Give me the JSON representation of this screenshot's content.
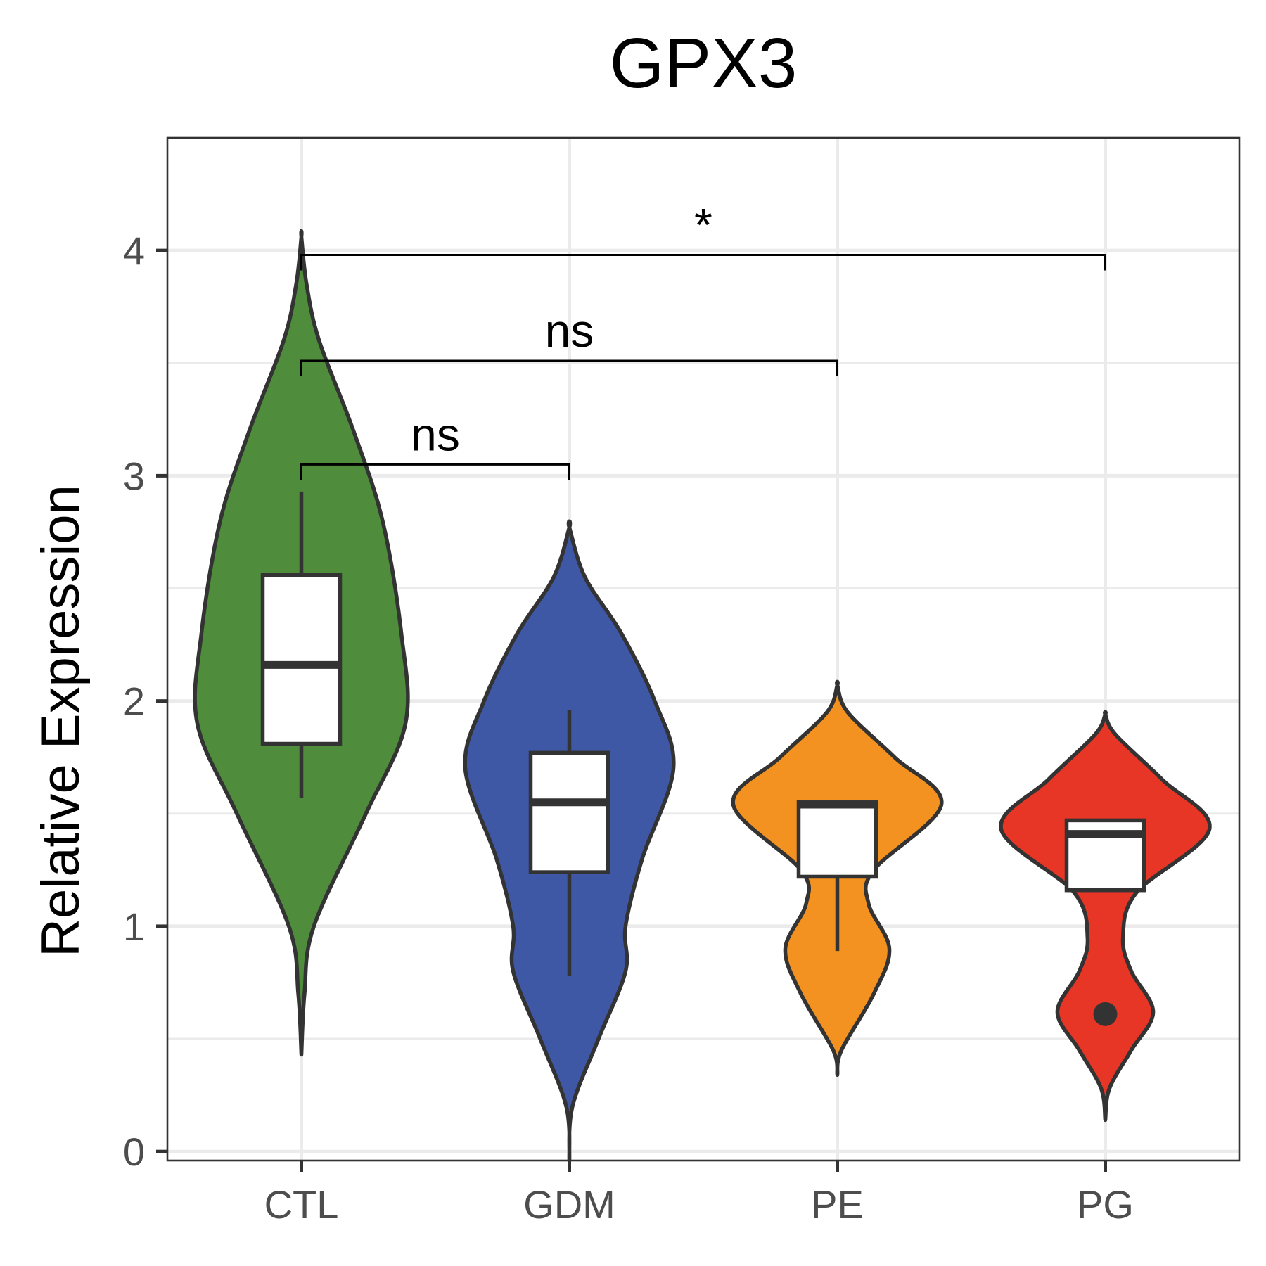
{
  "chart_data": {
    "type": "violin",
    "title": "GPX3",
    "xlabel": "",
    "ylabel": "Relative Expression",
    "ylim": [
      -0.04,
      4.5
    ],
    "yticks": [
      "0",
      "1",
      "2",
      "3",
      "4"
    ],
    "grid": true,
    "legend": "none",
    "categories": [
      "CTL",
      "GDM",
      "PE",
      "PG"
    ],
    "groups": [
      {
        "category": "CTL",
        "color": "#4f8c3c",
        "box": {
          "whisker_low": 1.57,
          "q1": 1.81,
          "median": 2.16,
          "q3": 2.56,
          "whisker_high": 2.93
        },
        "outliers": [],
        "violin_range": [
          0.43,
          4.06
        ],
        "density": [
          [
            0.43,
            0.0
          ],
          [
            0.7,
            0.03
          ],
          [
            1.0,
            0.12
          ],
          [
            1.5,
            0.62
          ],
          [
            1.9,
            1.0
          ],
          [
            2.3,
            0.96
          ],
          [
            2.8,
            0.78
          ],
          [
            3.2,
            0.5
          ],
          [
            3.6,
            0.17
          ],
          [
            3.85,
            0.05
          ],
          [
            4.06,
            0.0
          ]
        ]
      },
      {
        "category": "GDM",
        "color": "#3f58a6",
        "box": {
          "whisker_low": 0.78,
          "q1": 1.24,
          "median": 1.55,
          "q3": 1.77,
          "whisker_high": 1.96
        },
        "outliers": [],
        "violin_range": [
          -0.04,
          2.77
        ],
        "density": [
          [
            -0.04,
            0.0
          ],
          [
            0.2,
            0.03
          ],
          [
            0.5,
            0.28
          ],
          [
            0.8,
            0.54
          ],
          [
            1.0,
            0.54
          ],
          [
            1.3,
            0.7
          ],
          [
            1.7,
            1.0
          ],
          [
            2.0,
            0.82
          ],
          [
            2.3,
            0.5
          ],
          [
            2.55,
            0.15
          ],
          [
            2.77,
            0.0
          ]
        ]
      },
      {
        "category": "PE",
        "color": "#f39220",
        "box": {
          "whisker_low": 0.89,
          "q1": 1.22,
          "median": 1.54,
          "q3": 1.55,
          "whisker_high": 1.55
        },
        "outliers": [],
        "violin_range": [
          0.34,
          2.07
        ],
        "density": [
          [
            0.34,
            0.0
          ],
          [
            0.45,
            0.04
          ],
          [
            0.7,
            0.35
          ],
          [
            0.9,
            0.5
          ],
          [
            1.1,
            0.3
          ],
          [
            1.25,
            0.35
          ],
          [
            1.54,
            1.0
          ],
          [
            1.75,
            0.55
          ],
          [
            1.95,
            0.1
          ],
          [
            2.07,
            0.0
          ]
        ]
      },
      {
        "category": "PG",
        "color": "#e83626",
        "box": {
          "whisker_low": 1.16,
          "q1": 1.16,
          "median": 1.41,
          "q3": 1.47,
          "whisker_high": 1.47
        },
        "outliers": [
          0.61
        ],
        "violin_range": [
          0.14,
          1.94
        ],
        "density": [
          [
            0.14,
            0.0
          ],
          [
            0.28,
            0.04
          ],
          [
            0.45,
            0.25
          ],
          [
            0.62,
            0.46
          ],
          [
            0.8,
            0.25
          ],
          [
            0.95,
            0.17
          ],
          [
            1.15,
            0.3
          ],
          [
            1.43,
            1.0
          ],
          [
            1.65,
            0.55
          ],
          [
            1.85,
            0.1
          ],
          [
            1.94,
            0.0
          ]
        ]
      }
    ],
    "comparisons": [
      {
        "from": "CTL",
        "to": "GDM",
        "y": 3.05,
        "label": "ns"
      },
      {
        "from": "CTL",
        "to": "PE",
        "y": 3.51,
        "label": "ns"
      },
      {
        "from": "CTL",
        "to": "PG",
        "y": 3.98,
        "label": "*"
      }
    ]
  }
}
